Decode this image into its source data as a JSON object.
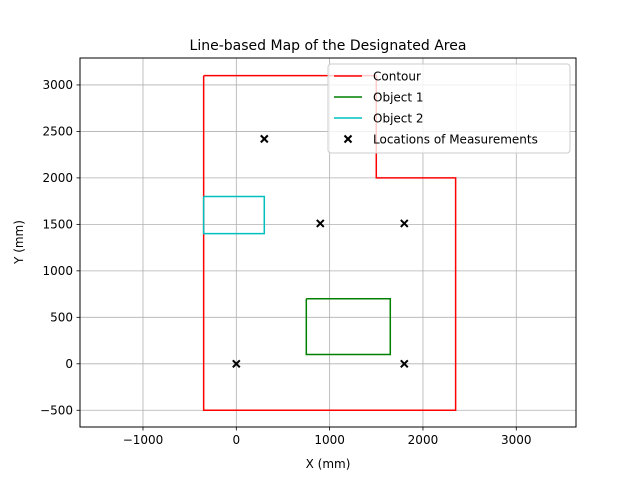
{
  "chart_data": {
    "type": "line",
    "title": "Line-based Map of the Designated Area",
    "xlabel": "X (mm)",
    "ylabel": "Y (mm)",
    "xlim": [
      -1675,
      3640
    ],
    "ylim": [
      -680,
      3290
    ],
    "xticks": [
      -1000,
      0,
      1000,
      2000,
      3000
    ],
    "xtick_labels": [
      "−1000",
      "0",
      "1000",
      "2000",
      "3000"
    ],
    "yticks": [
      -500,
      0,
      500,
      1000,
      1500,
      2000,
      2500,
      3000
    ],
    "ytick_labels": [
      "−500",
      "0",
      "500",
      "1000",
      "1500",
      "2000",
      "2500",
      "3000"
    ],
    "grid": true,
    "legend_position": "top-right",
    "series": [
      {
        "name": "Contour",
        "kind": "line",
        "color": "#ff0000",
        "x": [
          -350,
          1500,
          1500,
          2350,
          2350,
          -350,
          -350
        ],
        "y": [
          3100,
          3100,
          2000,
          2000,
          -500,
          -500,
          3100
        ]
      },
      {
        "name": "Object 1",
        "kind": "line",
        "color": "#008000",
        "x": [
          750,
          1650,
          1650,
          750,
          750
        ],
        "y": [
          700,
          700,
          100,
          100,
          700
        ]
      },
      {
        "name": "Object 2",
        "kind": "line",
        "color": "#00bfbf",
        "x": [
          -350,
          300,
          300,
          -350,
          -350
        ],
        "y": [
          1800,
          1800,
          1400,
          1400,
          1800
        ]
      },
      {
        "name": "Locations of Measurements",
        "kind": "scatter",
        "marker": "x",
        "color": "#000000",
        "x": [
          300,
          900,
          1800,
          0,
          1800
        ],
        "y": [
          2420,
          1510,
          1510,
          0,
          0
        ]
      }
    ]
  }
}
